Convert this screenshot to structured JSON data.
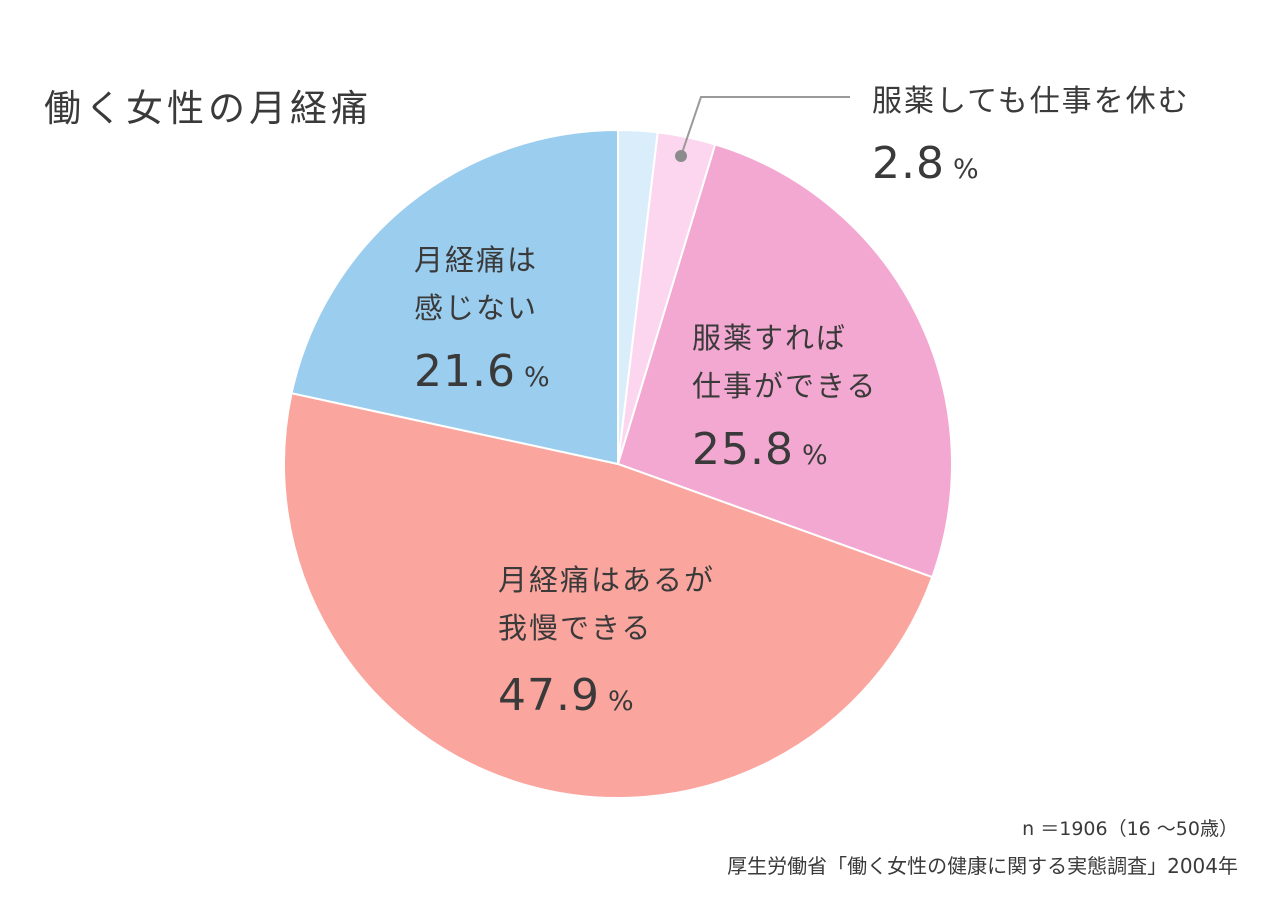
{
  "chart_data": {
    "type": "pie",
    "title": "働く女性の月経痛",
    "slices": [
      {
        "label": "",
        "value": 1.9,
        "color": "#d9eefa"
      },
      {
        "label": "服薬しても仕事を休む",
        "value": 2.8,
        "color": "#fbd6ee"
      },
      {
        "label": "服薬すれば仕事ができる",
        "value": 25.8,
        "color": "#f3a8d1"
      },
      {
        "label": "月経痛はあるが我慢できる",
        "value": 47.9,
        "color": "#faa59e"
      },
      {
        "label": "月経痛は感じない",
        "value": 21.6,
        "color": "#9bcdef"
      }
    ],
    "annotations": {
      "sample": "n ＝1906（16 〜50歳）",
      "source": "厚生労働省「働く女性の健康に関する実態調査」2004年"
    }
  },
  "labels": {
    "title": "働く女性の月経痛",
    "s1_line1": "服薬しても仕事を休む",
    "s1_value": "2.8",
    "s2_line1": "服薬すれば",
    "s2_line2": "仕事ができる",
    "s2_value": "25.8",
    "s3_line1": "月経痛はあるが",
    "s3_line2": "我慢できる",
    "s3_value": "47.9",
    "s4_line1": "月経痛は",
    "s4_line2": "感じない",
    "s4_value": "21.6",
    "pct": "%"
  }
}
